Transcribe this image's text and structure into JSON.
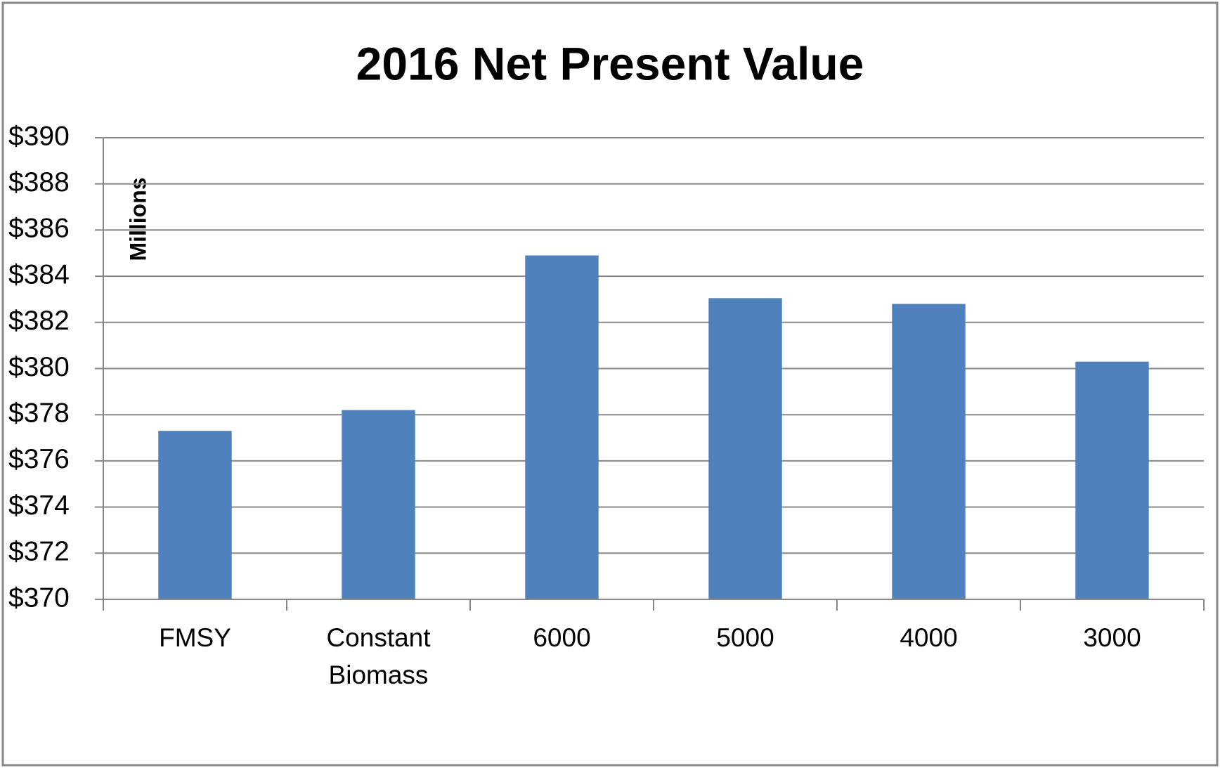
{
  "chart_data": {
    "type": "bar",
    "title": "2016 Net Present Value",
    "y_label": "Millions",
    "categories": [
      "FMSY",
      "Constant Biomass",
      "6000",
      "5000",
      "4000",
      "3000"
    ],
    "values": [
      377.3,
      378.2,
      384.9,
      383.05,
      382.8,
      380.3
    ],
    "color": "#4f81bd",
    "ylim": [
      370,
      390
    ],
    "yticks": [
      {
        "value": 370,
        "label": "$370"
      },
      {
        "value": 372,
        "label": "$372"
      },
      {
        "value": 374,
        "label": "$374"
      },
      {
        "value": 376,
        "label": "$376"
      },
      {
        "value": 378,
        "label": "$378"
      },
      {
        "value": 380,
        "label": "$380"
      },
      {
        "value": 382,
        "label": "$382"
      },
      {
        "value": 384,
        "label": "$384"
      },
      {
        "value": 386,
        "label": "$386"
      },
      {
        "value": 388,
        "label": "$388"
      },
      {
        "value": 390,
        "label": "$390"
      }
    ],
    "grid": true
  }
}
